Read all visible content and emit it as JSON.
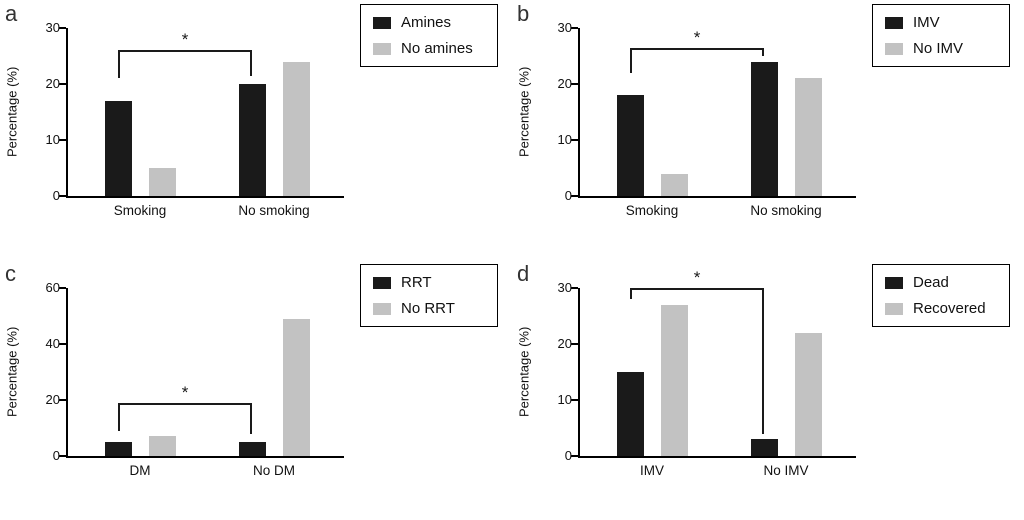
{
  "figure": {
    "description": "Four-panel grouped bar chart figure (panels a-d), percentages with significance brackets",
    "background": "#ffffff",
    "bar_black": "#1a1a1a",
    "bar_gray": "#c2c2c2"
  },
  "chart_data": [
    {
      "type": "bar",
      "panel": "a",
      "title": "",
      "xlabel": "",
      "ylabel": "Percentage (%)",
      "ylim": [
        0,
        30
      ],
      "yticks": [
        0,
        10,
        20,
        30
      ],
      "grid": false,
      "legend_position": "top-right",
      "categories": [
        "Smoking",
        "No smoking"
      ],
      "series": [
        {
          "name": "Amines",
          "color": "#1a1a1a",
          "values": [
            17,
            20
          ]
        },
        {
          "name": "No amines",
          "color": "#c2c2c2",
          "values": [
            5,
            24
          ]
        }
      ],
      "significance": {
        "label": "*",
        "from": {
          "category": 0,
          "series": 0
        },
        "to": {
          "category": 1,
          "series": 0
        },
        "y": 26,
        "from_end": 21,
        "to_end": 21.5
      }
    },
    {
      "type": "bar",
      "panel": "b",
      "title": "",
      "xlabel": "",
      "ylabel": "Percentage (%)",
      "ylim": [
        0,
        30
      ],
      "yticks": [
        0,
        10,
        20,
        30
      ],
      "grid": false,
      "legend_position": "top-right",
      "categories": [
        "Smoking",
        "No smoking"
      ],
      "series": [
        {
          "name": "IMV",
          "color": "#1a1a1a",
          "values": [
            18,
            24
          ]
        },
        {
          "name": "No IMV",
          "color": "#c2c2c2",
          "values": [
            4,
            21
          ]
        }
      ],
      "significance": {
        "label": "*",
        "from": {
          "category": 0,
          "series": 0
        },
        "to": {
          "category": 1,
          "series": 0
        },
        "y": 26.5,
        "from_end": 22,
        "to_end": 25
      }
    },
    {
      "type": "bar",
      "panel": "c",
      "title": "",
      "xlabel": "",
      "ylabel": "Percentage (%)",
      "ylim": [
        0,
        60
      ],
      "yticks": [
        0,
        20,
        40,
        60
      ],
      "grid": false,
      "legend_position": "top-right",
      "categories": [
        "DM",
        "No DM"
      ],
      "series": [
        {
          "name": "RRT",
          "color": "#1a1a1a",
          "values": [
            5,
            5
          ]
        },
        {
          "name": "No RRT",
          "color": "#c2c2c2",
          "values": [
            7,
            49
          ]
        }
      ],
      "significance": {
        "label": "*",
        "from": {
          "category": 0,
          "series": 0
        },
        "to": {
          "category": 1,
          "series": 0
        },
        "y": 19,
        "from_end": 9,
        "to_end": 8
      }
    },
    {
      "type": "bar",
      "panel": "d",
      "title": "",
      "xlabel": "",
      "ylabel": "Percentage (%)",
      "ylim": [
        0,
        30
      ],
      "yticks": [
        0,
        10,
        20,
        30
      ],
      "grid": false,
      "legend_position": "top-right",
      "categories": [
        "IMV",
        "No IMV"
      ],
      "series": [
        {
          "name": "Dead",
          "color": "#1a1a1a",
          "values": [
            15,
            3
          ]
        },
        {
          "name": "Recovered",
          "color": "#c2c2c2",
          "values": [
            27,
            22
          ]
        }
      ],
      "significance": {
        "label": "*",
        "from": {
          "category": 0,
          "series": 0
        },
        "to": {
          "category": 1,
          "series": 0
        },
        "y": 30,
        "from_end": 28,
        "to_end": 4
      }
    }
  ]
}
